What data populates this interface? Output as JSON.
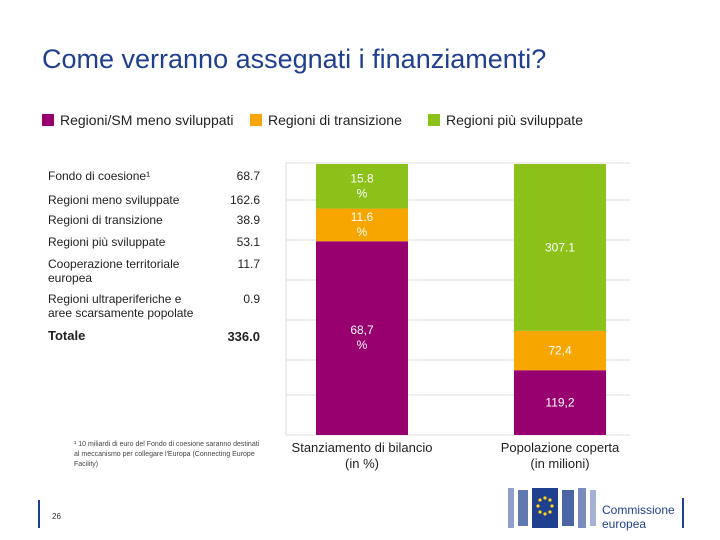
{
  "title": "Come verranno assegnati i finanziamenti?",
  "legend": [
    {
      "label": "Regioni/SM meno sviluppati",
      "color": "#99006f"
    },
    {
      "label": "Regioni di transizione",
      "color": "#f7a600"
    },
    {
      "label": "Regioni più sviluppate",
      "color": "#8cc11a"
    }
  ],
  "table": {
    "rows": [
      {
        "label": "Fondo di coesione¹",
        "value": "68.7"
      },
      {
        "label": "Regioni meno sviluppate",
        "value": "162.6"
      },
      {
        "label": "Regioni di transizione",
        "value": "38.9"
      },
      {
        "label": "Regioni più sviluppate",
        "value": "53.1"
      },
      {
        "label": "Cooperazione territoriale europea",
        "value": "11.7"
      },
      {
        "label": "Regioni ultraperiferiche e aree scarsamente popolate",
        "value": "0.9"
      }
    ],
    "total_label": "Totale",
    "total_value": "336.0"
  },
  "footnote": "¹ 10 miliardi di euro del Fondo di coesione saranno destinati al meccanismo per collegare l'Europa (Connecting Europe Facility)",
  "page_number": "26",
  "logo_text_line1": "Commissione",
  "logo_text_line2": "europea",
  "chart_data": {
    "type": "bar",
    "stacked": true,
    "categories": [
      "Stanziamento di bilancio (in %)",
      "Popolazione coperta (in milioni)"
    ],
    "series": [
      {
        "name": "Regioni/SM meno sviluppati",
        "color": "#99006f",
        "values": [
          68.7,
          119.2
        ],
        "labels": [
          "68,7 %",
          "119,2"
        ]
      },
      {
        "name": "Regioni di transizione",
        "color": "#f7a600",
        "values": [
          11.6,
          72.4
        ],
        "labels": [
          "11.6 %",
          "72,4"
        ]
      },
      {
        "name": "Regioni più sviluppate",
        "color": "#8cc11a",
        "values": [
          15.8,
          307.1
        ],
        "labels": [
          "15.8 %",
          "307.1"
        ]
      }
    ],
    "xlabels": [
      "Stanziamento di bilancio",
      "(in %)",
      "Popolazione coperta",
      "(in milioni)"
    ],
    "legend_position": "top",
    "grid": true
  }
}
